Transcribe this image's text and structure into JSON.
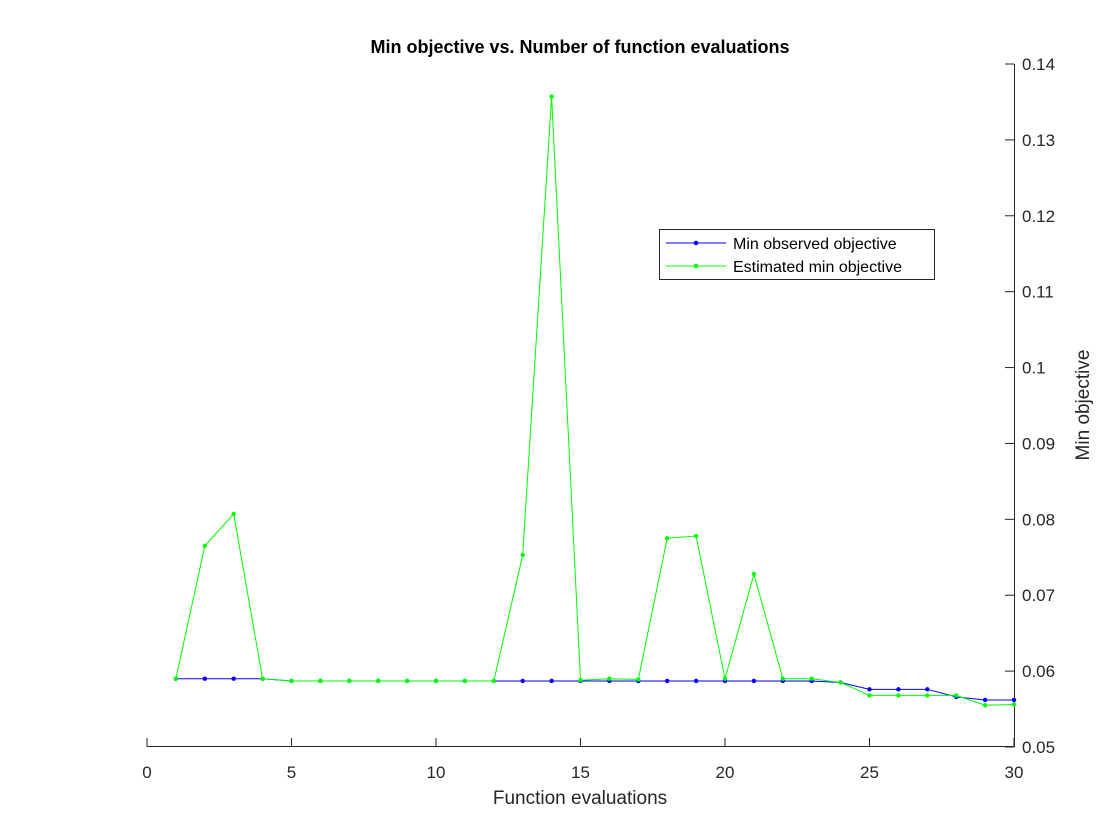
{
  "chart_data": {
    "type": "line",
    "title": "Min objective vs. Number of function evaluations",
    "xlabel": "Function evaluations",
    "ylabel": "Min objective",
    "xlim": [
      0,
      30
    ],
    "ylim": [
      0.05,
      0.14
    ],
    "x_ticks": [
      "0",
      "5",
      "10",
      "15",
      "20",
      "25",
      "30"
    ],
    "y_ticks": [
      "0.05",
      "0.06",
      "0.07",
      "0.08",
      "0.09",
      "0.1",
      "0.11",
      "0.12",
      "0.13",
      "0.14"
    ],
    "y_axis_side": "right",
    "grid": false,
    "legend_position": "upper-right-inside",
    "x": [
      1,
      2,
      3,
      4,
      5,
      6,
      7,
      8,
      9,
      10,
      11,
      12,
      13,
      14,
      15,
      16,
      17,
      18,
      19,
      20,
      21,
      22,
      23,
      24,
      25,
      26,
      27,
      28,
      29,
      30
    ],
    "series": [
      {
        "name": "Min observed objective",
        "color": "#0000ff",
        "values": [
          0.059,
          0.059,
          0.059,
          0.059,
          0.0587,
          0.0587,
          0.0587,
          0.0587,
          0.0587,
          0.0587,
          0.0587,
          0.0587,
          0.0587,
          0.0587,
          0.0587,
          0.0587,
          0.0587,
          0.0587,
          0.0587,
          0.0587,
          0.0587,
          0.0587,
          0.0587,
          0.0585,
          0.0576,
          0.0576,
          0.0576,
          0.0566,
          0.0562,
          0.0562
        ]
      },
      {
        "name": "Estimated min objective",
        "color": "#00ff00",
        "values": [
          0.059,
          0.0765,
          0.0807,
          0.059,
          0.0587,
          0.0587,
          0.0587,
          0.0587,
          0.0587,
          0.0587,
          0.0587,
          0.0587,
          0.0753,
          0.1357,
          0.0588,
          0.059,
          0.0589,
          0.0775,
          0.0778,
          0.059,
          0.0728,
          0.059,
          0.059,
          0.0585,
          0.0568,
          0.0568,
          0.0568,
          0.0568,
          0.0555,
          0.0556
        ]
      }
    ]
  }
}
